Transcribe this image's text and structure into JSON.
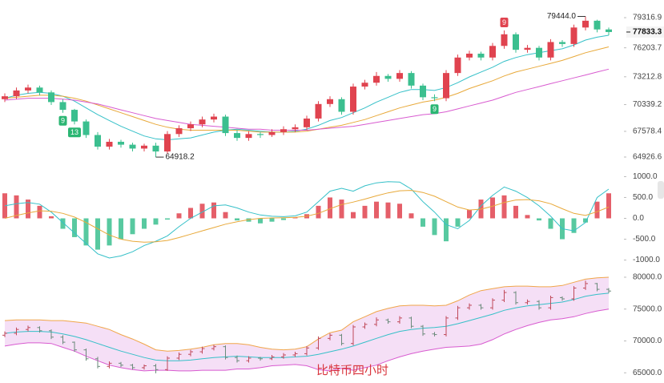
{
  "chart_data": [
    {
      "type": "candlestick",
      "up_color": "#e0434f",
      "down_color": "#3bbf8f",
      "open": [
        70900,
        71200,
        71800,
        72100,
        71600,
        70600,
        69800,
        68600,
        67200,
        66000,
        66500,
        66200,
        65800,
        66100,
        65500,
        67300,
        67900,
        68300,
        68800,
        69100,
        67400,
        66900,
        67300,
        67200,
        67500,
        67800,
        68000,
        68900,
        70400,
        70900,
        69600,
        72200,
        72600,
        73300,
        73000,
        73600,
        72300,
        71100,
        71000,
        73600,
        75200,
        75600,
        75200,
        76400,
        77600,
        76000,
        76200,
        75200,
        76800,
        76600,
        78300,
        79000,
        78100
      ],
      "high": [
        71500,
        72100,
        72400,
        72300,
        71800,
        70900,
        69900,
        68800,
        67500,
        66800,
        66700,
        66400,
        66300,
        66400,
        67600,
        68200,
        68600,
        69100,
        69400,
        69300,
        67700,
        67600,
        67500,
        67800,
        68100,
        68300,
        69200,
        70700,
        71200,
        71100,
        72500,
        72900,
        73700,
        73500,
        73900,
        73800,
        72500,
        71400,
        73900,
        75500,
        75900,
        75800,
        76700,
        78000,
        77800,
        76500,
        76400,
        77100,
        77000,
        78600,
        79444,
        79100,
        78300
      ],
      "low": [
        70600,
        70900,
        71500,
        71300,
        70300,
        69500,
        68300,
        66900,
        65700,
        65700,
        65900,
        65500,
        65500,
        64918.2,
        65300,
        67000,
        67600,
        68000,
        68500,
        67100,
        66600,
        66600,
        66900,
        67000,
        67200,
        67500,
        67700,
        68600,
        70100,
        69300,
        69300,
        71900,
        72300,
        72700,
        72700,
        72000,
        70800,
        70700,
        70700,
        73300,
        74900,
        74900,
        74900,
        76100,
        75700,
        75700,
        74900,
        74900,
        76300,
        76300,
        78000,
        77800,
        77500
      ],
      "close": [
        71200,
        71800,
        72100,
        71600,
        70600,
        69800,
        68600,
        67200,
        66000,
        66500,
        66200,
        65800,
        66100,
        65500,
        67300,
        67900,
        68300,
        68800,
        69100,
        67400,
        66900,
        67300,
        67200,
        67500,
        67800,
        68000,
        68900,
        70400,
        70900,
        69600,
        72200,
        72600,
        73300,
        73000,
        73600,
        72300,
        71100,
        71000,
        73600,
        75200,
        75600,
        75200,
        76400,
        77600,
        76000,
        76200,
        75200,
        76800,
        76600,
        78300,
        79000,
        78100,
        77833.3
      ],
      "series": [
        {
          "color": "#35c0c8",
          "values": [
            71000,
            71300,
            71500,
            71600,
            71500,
            71200,
            70700,
            70000,
            69300,
            68700,
            68100,
            67600,
            67100,
            66800,
            66700,
            66800,
            66900,
            67200,
            67500,
            67700,
            67800,
            67700,
            67600,
            67500,
            67500,
            67600,
            67800,
            68200,
            68700,
            69000,
            69500,
            70000,
            70600,
            71100,
            71600,
            71900,
            71900,
            71800,
            72100,
            72600,
            73200,
            73700,
            74200,
            74800,
            75200,
            75500,
            75700,
            75900,
            76100,
            76500,
            77000,
            77300,
            77500
          ]
        },
        {
          "color": "#e8a93a",
          "values": [
            71000,
            71100,
            71200,
            71300,
            71300,
            71200,
            71000,
            70700,
            70300,
            69900,
            69500,
            69100,
            68700,
            68300,
            68000,
            67800,
            67700,
            67700,
            67700,
            67700,
            67700,
            67600,
            67500,
            67500,
            67500,
            67500,
            67600,
            67800,
            68000,
            68200,
            68500,
            68800,
            69200,
            69600,
            70000,
            70300,
            70600,
            70800,
            71100,
            71500,
            72000,
            72400,
            72800,
            73300,
            73700,
            74000,
            74300,
            74600,
            74900,
            75300,
            75700,
            76000,
            76300
          ]
        },
        {
          "color": "#d85bd0",
          "values": [
            70800,
            70900,
            71000,
            71000,
            71000,
            70900,
            70800,
            70600,
            70400,
            70100,
            69800,
            69500,
            69200,
            68900,
            68700,
            68500,
            68300,
            68200,
            68100,
            68000,
            67900,
            67800,
            67800,
            67700,
            67700,
            67700,
            67700,
            67800,
            67900,
            68000,
            68100,
            68300,
            68500,
            68700,
            68900,
            69100,
            69300,
            69400,
            69600,
            69900,
            70200,
            70500,
            70800,
            71200,
            71600,
            71900,
            72200,
            72500,
            72800,
            73100,
            73400,
            73700,
            74000
          ]
        }
      ],
      "ylim": [
        64180,
        81140
      ],
      "yticks": [
        79316.9,
        76203.7,
        73212.8,
        70339.2,
        67578.4,
        64926.6
      ],
      "markers": [
        {
          "label": "9",
          "index": 5,
          "color": "#2bb673",
          "side": "below"
        },
        {
          "label": "13",
          "index": 6,
          "color": "#2bb673",
          "side": "below"
        },
        {
          "label": "9",
          "index": 37,
          "color": "#2bb673",
          "side": "below"
        },
        {
          "label": "9",
          "index": 43,
          "color": "#e0434f",
          "side": "above"
        }
      ],
      "annotations": [
        {
          "label": "79444.0",
          "index": 50,
          "value": 79444,
          "side": "left"
        },
        {
          "label": "64918.2",
          "index": 13,
          "value": 64918.2,
          "side": "right"
        }
      ]
    },
    {
      "type": "macd",
      "pos_color": "#e0434f",
      "neg_color": "#3bbf8f",
      "values": [
        600,
        550,
        450,
        300,
        50,
        -250,
        -450,
        -650,
        -750,
        -650,
        -500,
        -380,
        -250,
        -150,
        -30,
        120,
        250,
        350,
        380,
        150,
        -50,
        -80,
        -120,
        -80,
        -40,
        20,
        100,
        300,
        500,
        450,
        150,
        300,
        400,
        380,
        350,
        120,
        -200,
        -400,
        -550,
        -200,
        200,
        450,
        500,
        550,
        300,
        80,
        -50,
        -250,
        -500,
        -350,
        -100,
        400,
        600
      ],
      "series": [
        {
          "color": "#35c0c8",
          "values": [
            300,
            350,
            380,
            340,
            150,
            -100,
            -350,
            -600,
            -850,
            -950,
            -900,
            -800,
            -650,
            -550,
            -420,
            -200,
            0,
            150,
            300,
            320,
            250,
            150,
            80,
            50,
            40,
            60,
            150,
            400,
            650,
            720,
            650,
            780,
            850,
            880,
            870,
            700,
            400,
            150,
            -150,
            -250,
            -50,
            300,
            550,
            750,
            650,
            500,
            300,
            50,
            -250,
            -300,
            -100,
            500,
            700
          ]
        },
        {
          "color": "#e8a93a",
          "values": [
            0,
            70,
            130,
            180,
            170,
            120,
            30,
            -100,
            -250,
            -400,
            -500,
            -550,
            -570,
            -560,
            -530,
            -460,
            -380,
            -300,
            -220,
            -140,
            -80,
            -30,
            0,
            10,
            15,
            25,
            50,
            120,
            230,
            330,
            390,
            460,
            540,
            610,
            660,
            670,
            620,
            530,
            400,
            270,
            200,
            220,
            290,
            380,
            440,
            450,
            420,
            350,
            230,
            120,
            70,
            160,
            270
          ]
        }
      ],
      "ylim": [
        -1200,
        1200
      ],
      "yticks": [
        {
          "value": 1000,
          "label": "1000.0"
        },
        {
          "value": 500,
          "label": "500.0"
        },
        {
          "value": 0,
          "label": "0.0"
        },
        {
          "value": -500,
          "label": "-500.0"
        },
        {
          "value": -1000,
          "label": "-1000.0"
        }
      ]
    },
    {
      "type": "bollinger",
      "title": "比特币四小时",
      "band_color": "#f2d7f4",
      "series": [
        {
          "color": "#f0a64a",
          "values": [
            73200,
            73300,
            73300,
            73300,
            73200,
            73200,
            73000,
            72800,
            72300,
            71800,
            71000,
            70300,
            69500,
            68600,
            68400,
            68500,
            68700,
            69000,
            69400,
            69600,
            69600,
            69400,
            69000,
            68700,
            68600,
            68700,
            69100,
            70300,
            71300,
            71700,
            73000,
            73800,
            74600,
            75100,
            75500,
            75600,
            75600,
            75500,
            75600,
            76300,
            77200,
            77900,
            78200,
            78500,
            78600,
            78600,
            78500,
            78500,
            78700,
            79200,
            79700,
            79900,
            80000
          ]
        },
        {
          "color": "#35c0c8",
          "values": [
            71200,
            71400,
            71500,
            71500,
            71400,
            71100,
            70700,
            70200,
            69600,
            69000,
            68400,
            67900,
            67400,
            67000,
            66900,
            66900,
            67000,
            67200,
            67400,
            67500,
            67600,
            67500,
            67400,
            67400,
            67400,
            67500,
            67600,
            67900,
            68300,
            68700,
            69200,
            69800,
            70400,
            71000,
            71500,
            71800,
            72000,
            72100,
            72300,
            72700,
            73200,
            73700,
            74200,
            74800,
            75200,
            75500,
            75700,
            75900,
            76100,
            76500,
            77000,
            77300,
            77500
          ]
        },
        {
          "color": "#d85bd0",
          "values": [
            69200,
            69500,
            69700,
            69700,
            69600,
            69000,
            68400,
            67600,
            66900,
            66200,
            65800,
            65500,
            65300,
            65400,
            65400,
            65300,
            65300,
            65400,
            65400,
            65400,
            65600,
            65600,
            65800,
            66100,
            66200,
            66300,
            66100,
            65500,
            65300,
            65700,
            65400,
            65800,
            66200,
            66900,
            67500,
            68000,
            68400,
            68700,
            69000,
            69100,
            69200,
            69500,
            70200,
            71100,
            71800,
            72400,
            72900,
            73300,
            73500,
            73800,
            74300,
            74700,
            75000
          ]
        }
      ],
      "ylim": [
        63400,
        80750
      ],
      "yticks": [
        {
          "value": 80000,
          "label": "80000.0"
        },
        {
          "value": 75000,
          "label": "75000.0"
        },
        {
          "value": 70000,
          "label": "70000.0"
        },
        {
          "value": 65000,
          "label": "65000.0"
        }
      ]
    }
  ]
}
